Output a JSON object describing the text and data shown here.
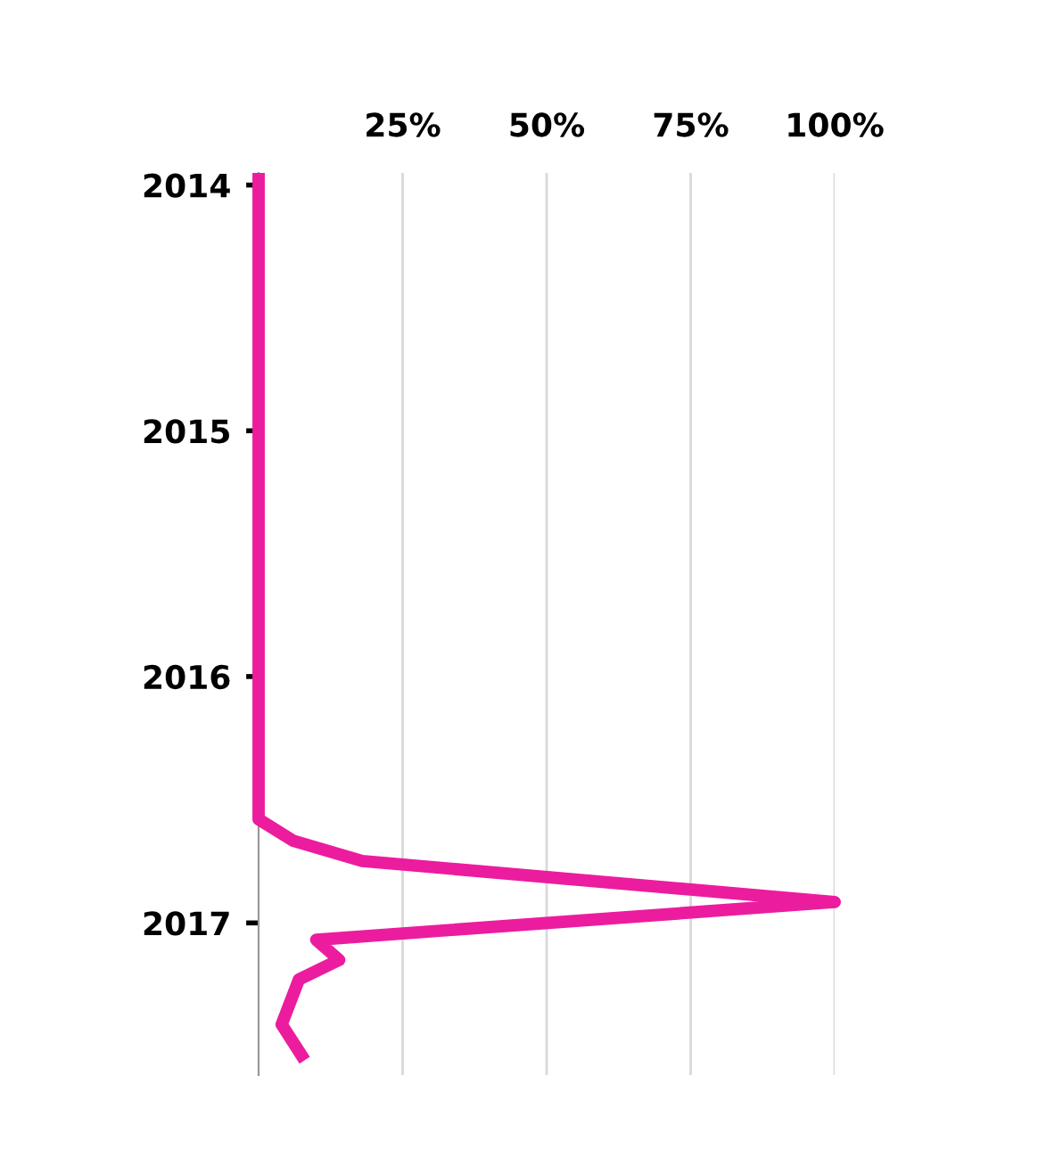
{
  "chart_data": {
    "type": "line",
    "orientation": "horizontal",
    "x": [
      "2013-12-14",
      "2016-07-31",
      "2016-09-01",
      "2016-10-01",
      "2016-12-01",
      "2017-01-26",
      "2017-02-25",
      "2017-03-26",
      "2017-06-01",
      "2017-07-24"
    ],
    "series": [
      {
        "color": "#ec1c9f",
        "values": [
          0,
          0,
          6,
          18,
          100,
          10,
          14,
          7,
          4,
          8
        ]
      }
    ],
    "xlim": [
      0,
      100
    ],
    "xticks": [
      {
        "value": 25,
        "label": "25%"
      },
      {
        "value": 50,
        "label": "50%"
      },
      {
        "value": 75,
        "label": "75%"
      },
      {
        "value": 100,
        "label": "100%"
      }
    ],
    "ylim": [
      "2017-08-15",
      "2013-12-14"
    ],
    "yticks": [
      {
        "value": "2014-01-01",
        "label": "2014"
      },
      {
        "value": "2015-01-01",
        "label": "2015"
      },
      {
        "value": "2016-01-01",
        "label": "2016"
      },
      {
        "value": "2017-01-01",
        "label": "2017"
      }
    ],
    "grid": "x",
    "marker": "none",
    "line_style": "solid"
  }
}
